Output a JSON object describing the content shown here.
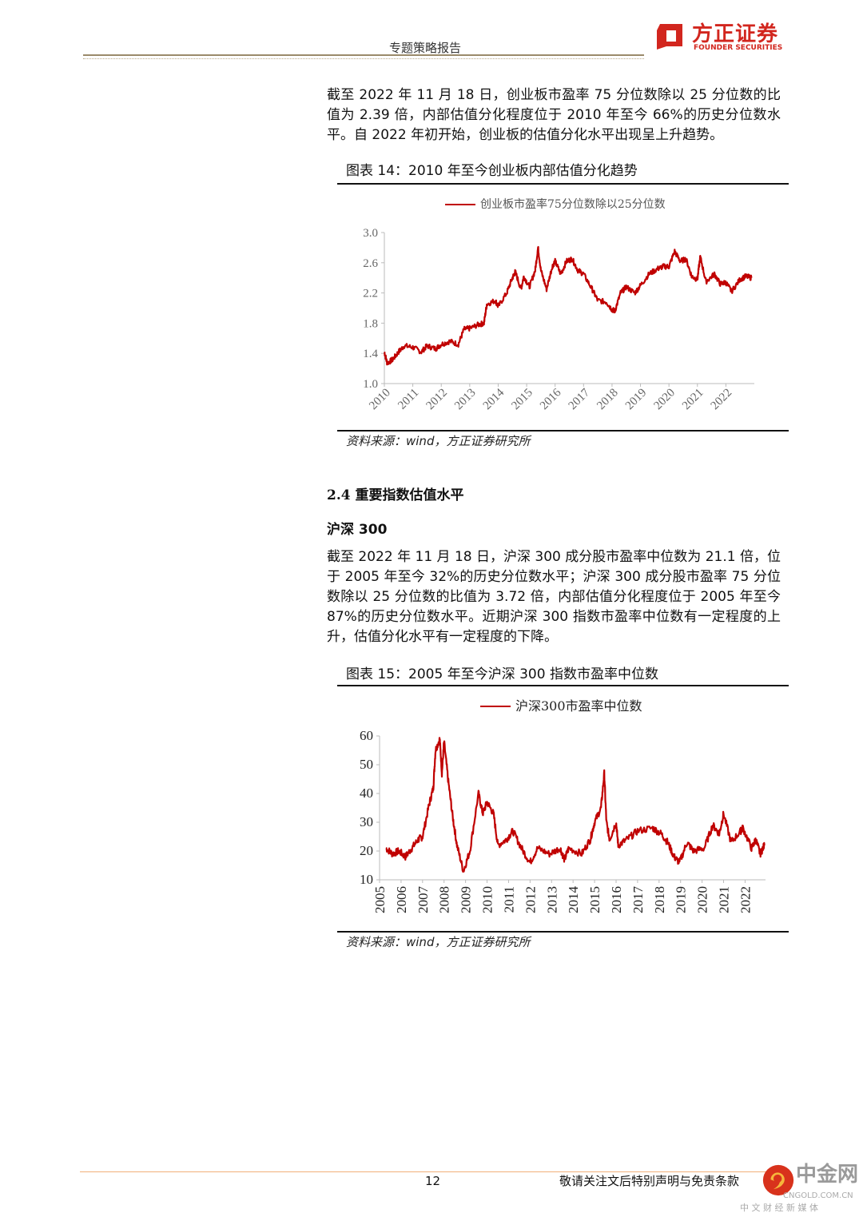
{
  "header": {
    "report_type": "专题策略报告",
    "logo_cn": "方正证券",
    "logo_en": "FOUNDER SECURITIES"
  },
  "intro_paragraph": "截至 2022 年 11 月 18 日，创业板市盈率 75 分位数除以 25 分位数的比值为 2.39 倍，内部估值分化程度位于 2010 年至今 66%的历史分位数水平。自 2022 年初开始，创业板的估值分化水平出现呈上升趋势。",
  "figure14": {
    "title": "图表 14：2010 年至今创业板内部估值分化趋势",
    "source": "资料来源：wind，方正证券研究所"
  },
  "section": {
    "heading": "2.4  重要指数估值水平",
    "subheading": "沪深 300",
    "paragraph": "截至 2022 年 11 月 18 日，沪深 300 成分股市盈率中位数为 21.1 倍，位于 2005 年至今 32%的历史分位数水平；沪深 300 成分股市盈率 75 分位数除以 25 分位数的比值为 3.72 倍，内部估值分化程度位于 2005 年至今 87%的历史分位数水平。近期沪深 300 指数市盈率中位数有一定程度的上升，估值分化水平有一定程度的下降。"
  },
  "figure15": {
    "title": "图表 15：2005 年至今沪深 300 指数市盈率中位数",
    "source": "资料来源：wind，方正证券研究所"
  },
  "footer": {
    "page_number": "12",
    "note": "敬请关注文后特别声明与免责条款",
    "watermark_cn": "中金网",
    "watermark_url": "CNGOLD.COM.CN",
    "watermark_tag": "中 文 财 经 新 媒 体"
  },
  "chart_data": [
    {
      "type": "line",
      "title": "",
      "legend": [
        "创业板市盈率75分位数除以25分位数"
      ],
      "legend_placement": "top-center",
      "ylim": [
        1.0,
        3.0
      ],
      "yticks": [
        "1.0",
        "1.4",
        "1.8",
        "2.2",
        "2.6",
        "3.0"
      ],
      "xlim": [
        2010,
        2023
      ],
      "xticks": [
        "2010",
        "2011",
        "2012",
        "2013",
        "2014",
        "2015",
        "2016",
        "2017",
        "2018",
        "2019",
        "2020",
        "2021",
        "2022"
      ],
      "color": "#c00000",
      "series": [
        {
          "name": "创业板市盈率75分位数除以25分位数",
          "x": [
            2010.0,
            2010.1,
            2010.3,
            2010.5,
            2010.7,
            2011.0,
            2011.3,
            2011.5,
            2011.8,
            2012.0,
            2012.3,
            2012.6,
            2012.8,
            2013.0,
            2013.3,
            2013.5,
            2013.6,
            2013.9,
            2014.0,
            2014.3,
            2014.5,
            2014.6,
            2014.8,
            2014.9,
            2015.1,
            2015.3,
            2015.4,
            2015.5,
            2015.7,
            2015.9,
            2016.0,
            2016.2,
            2016.4,
            2016.6,
            2016.8,
            2017.0,
            2017.3,
            2017.5,
            2017.8,
            2018.0,
            2018.1,
            2018.3,
            2018.5,
            2018.8,
            2019.0,
            2019.3,
            2019.6,
            2019.8,
            2020.0,
            2020.2,
            2020.4,
            2020.6,
            2020.8,
            2021.0,
            2021.1,
            2021.3,
            2021.6,
            2021.8,
            2022.0,
            2022.2,
            2022.5,
            2022.7,
            2022.9
          ],
          "y": [
            1.42,
            1.27,
            1.32,
            1.42,
            1.5,
            1.48,
            1.42,
            1.5,
            1.46,
            1.52,
            1.56,
            1.52,
            1.72,
            1.73,
            1.78,
            1.8,
            2.05,
            2.1,
            2.02,
            2.2,
            2.4,
            2.48,
            2.25,
            2.42,
            2.28,
            2.5,
            2.8,
            2.5,
            2.25,
            2.55,
            2.62,
            2.45,
            2.62,
            2.65,
            2.5,
            2.45,
            2.25,
            2.1,
            2.08,
            1.98,
            1.96,
            2.2,
            2.28,
            2.2,
            2.3,
            2.45,
            2.52,
            2.55,
            2.55,
            2.75,
            2.62,
            2.65,
            2.42,
            2.38,
            2.68,
            2.35,
            2.45,
            2.32,
            2.34,
            2.22,
            2.38,
            2.42,
            2.4
          ]
        }
      ]
    },
    {
      "type": "line",
      "title": "",
      "legend": [
        "沪深300市盈率中位数"
      ],
      "legend_placement": "top-center",
      "ylim": [
        10,
        60
      ],
      "yticks": [
        "10",
        "20",
        "30",
        "40",
        "50",
        "60"
      ],
      "xlim": [
        2005,
        2022.95
      ],
      "xticks": [
        "2005",
        "2006",
        "2007",
        "2008",
        "2009",
        "2010",
        "2011",
        "2012",
        "2013",
        "2014",
        "2015",
        "2016",
        "2017",
        "2018",
        "2019",
        "2020",
        "2021",
        "2022"
      ],
      "color": "#c00000",
      "series": [
        {
          "name": "沪深300市盈率中位数",
          "x": [
            2005.3,
            2005.6,
            2005.9,
            2006.2,
            2006.5,
            2006.8,
            2007.0,
            2007.3,
            2007.5,
            2007.6,
            2007.8,
            2007.9,
            2008.0,
            2008.2,
            2008.4,
            2008.6,
            2008.9,
            2009.2,
            2009.6,
            2009.8,
            2010.0,
            2010.3,
            2010.5,
            2010.9,
            2011.2,
            2011.6,
            2012.0,
            2012.35,
            2012.9,
            2013.4,
            2013.6,
            2013.8,
            2014.4,
            2014.8,
            2015.0,
            2015.3,
            2015.45,
            2015.55,
            2015.7,
            2016.0,
            2016.1,
            2016.5,
            2017.0,
            2017.7,
            2018.1,
            2018.4,
            2018.7,
            2018.95,
            2019.3,
            2019.6,
            2020.1,
            2020.5,
            2020.8,
            2021.0,
            2021.35,
            2021.8,
            2021.9,
            2022.3,
            2022.5,
            2022.7,
            2022.9
          ],
          "y": [
            21,
            19,
            20,
            18,
            21,
            24,
            25,
            36,
            42,
            55,
            59,
            47,
            58,
            44,
            32,
            22,
            13,
            20,
            40,
            33,
            37,
            33,
            22,
            24,
            27,
            21,
            16,
            21,
            19,
            21,
            17,
            21,
            19,
            24,
            30,
            35,
            47,
            30,
            24,
            30,
            22,
            24,
            27,
            28,
            26,
            23,
            18,
            16,
            23,
            20,
            21,
            29,
            26,
            33,
            23,
            27,
            28,
            21,
            24,
            19,
            22
          ]
        }
      ]
    }
  ]
}
